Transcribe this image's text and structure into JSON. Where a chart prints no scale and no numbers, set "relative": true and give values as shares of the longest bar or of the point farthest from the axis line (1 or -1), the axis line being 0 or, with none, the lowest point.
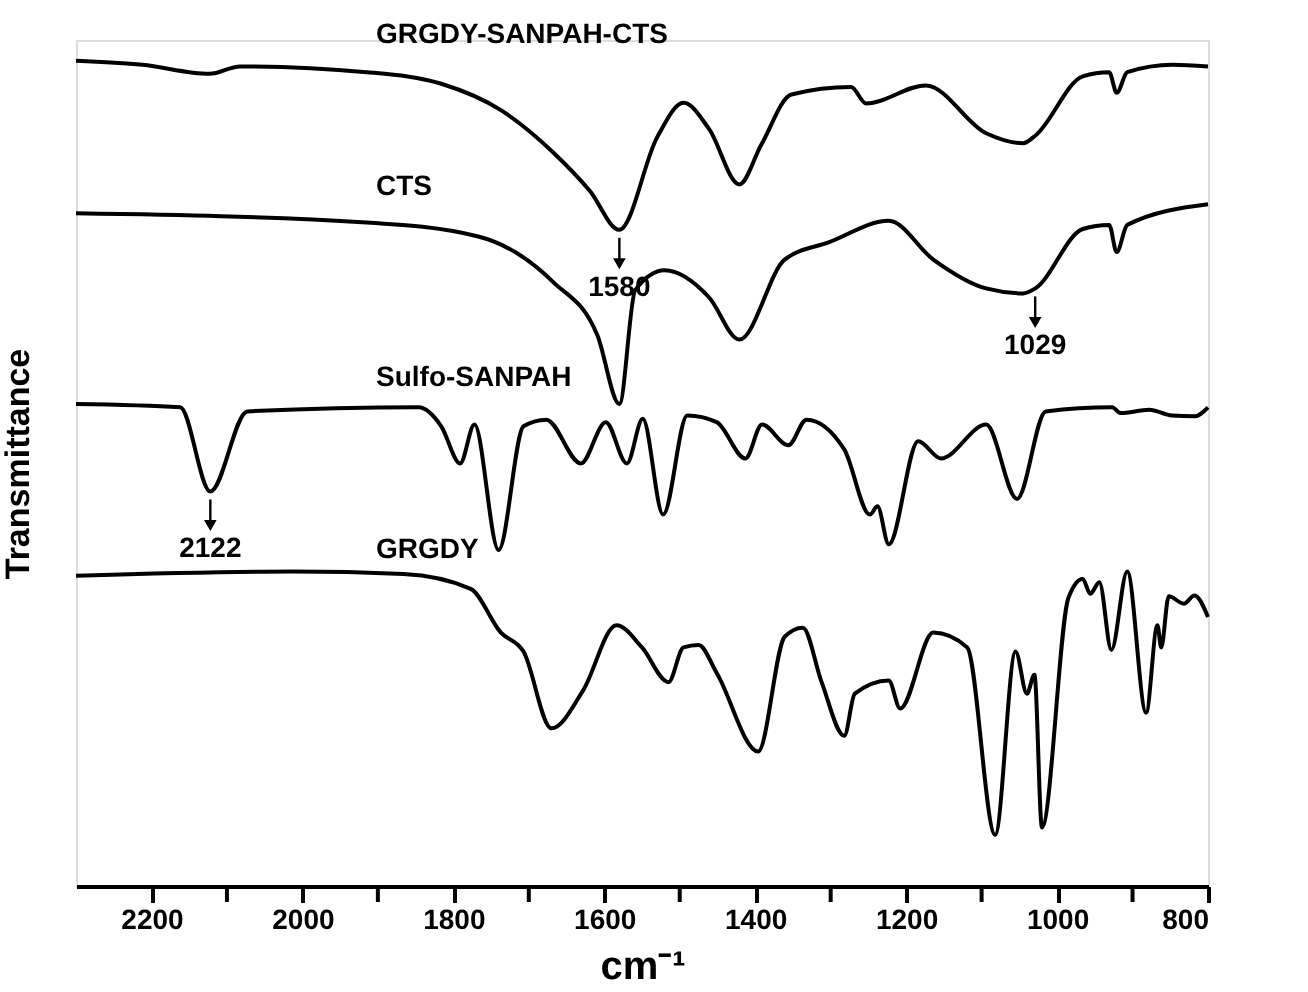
{
  "chart_data": {
    "type": "line",
    "relative": true,
    "xlabel": "cm⁻¹",
    "ylabel": "Transmittance",
    "xlim": [
      2300,
      800
    ],
    "xticks": [
      2200,
      {
        "value": 2100,
        "label": null
      },
      2000,
      {
        "value": 1900,
        "label": null
      },
      1800,
      {
        "value": 1700,
        "label": null
      },
      1600,
      {
        "value": 1500,
        "label": null
      },
      1400,
      {
        "value": 1300,
        "label": null
      },
      1200,
      {
        "value": 1100,
        "label": null
      },
      1000,
      {
        "value": 900,
        "label": null
      },
      800
    ],
    "grid": false,
    "legend": false,
    "tick_labels": "x",
    "marker": "none",
    "line_style": "solid",
    "series": [
      {
        "name": "GRGDY-SANPAH-CTS",
        "color": "#000000",
        "x": [
          2300,
          2212,
          2123,
          2083,
          1915,
          1816,
          1737,
          1668,
          1619,
          1580,
          1530,
          1495,
          1461,
          1421,
          1392,
          1352,
          1273,
          1253,
          1174,
          1094,
          1045,
          1029,
          966,
          931,
          921,
          907,
          847,
          800
        ],
        "values": [
          1.0,
          0.995,
          0.984,
          0.993,
          0.986,
          0.972,
          0.94,
          0.889,
          0.842,
          0.795,
          0.907,
          0.949,
          0.917,
          0.85,
          0.898,
          0.959,
          0.968,
          0.948,
          0.97,
          0.912,
          0.9,
          0.909,
          0.981,
          0.986,
          0.961,
          0.986,
          0.995,
          0.993
        ]
      },
      {
        "name": "CTS",
        "color": "#000000",
        "x": [
          2300,
          1915,
          1767,
          1668,
          1609,
          1580,
          1559,
          1520,
          1461,
          1421,
          1361,
          1302,
          1223,
          1164,
          1094,
          1045,
          1029,
          966,
          931,
          921,
          907,
          800
        ],
        "values": [
          0.815,
          0.804,
          0.787,
          0.732,
          0.667,
          0.584,
          0.722,
          0.746,
          0.713,
          0.662,
          0.759,
          0.78,
          0.806,
          0.759,
          0.724,
          0.718,
          0.724,
          0.796,
          0.801,
          0.768,
          0.801,
          0.826
        ]
      },
      {
        "name": "Sulfo-SANPAH",
        "color": "#000000",
        "x": [
          2300,
          2162,
          2122,
          2073,
          1846,
          1816,
          1791,
          1772,
          1740,
          1707,
          1677,
          1631,
          1598,
          1570,
          1549,
          1522,
          1490,
          1451,
          1413,
          1391,
          1356,
          1332,
          1282,
          1248,
          1238,
          1223,
          1184,
          1154,
          1094,
          1053,
          1015,
          927,
          916,
          878,
          848,
          818,
          800
        ],
        "values": [
          0.584,
          0.58,
          0.478,
          0.575,
          0.58,
          0.557,
          0.512,
          0.559,
          0.407,
          0.557,
          0.565,
          0.512,
          0.562,
          0.512,
          0.566,
          0.45,
          0.57,
          0.562,
          0.518,
          0.559,
          0.534,
          0.565,
          0.529,
          0.45,
          0.46,
          0.414,
          0.539,
          0.518,
          0.559,
          0.469,
          0.575,
          0.58,
          0.573,
          0.577,
          0.57,
          0.569,
          0.58
        ]
      },
      {
        "name": "GRGDY",
        "color": "#000000",
        "x": [
          2300,
          2014,
          1866,
          1777,
          1737,
          1707,
          1670,
          1628,
          1584,
          1550,
          1515,
          1495,
          1475,
          1451,
          1396,
          1361,
          1337,
          1312,
          1282,
          1268,
          1223,
          1208,
          1164,
          1119,
          1082,
          1055,
          1040,
          1030,
          1020,
          985,
          966,
          956,
          944,
          928,
          907,
          882,
          867,
          862,
          852,
          832,
          818,
          800
        ],
        "values": [
          0.376,
          0.381,
          0.378,
          0.36,
          0.307,
          0.284,
          0.191,
          0.237,
          0.316,
          0.289,
          0.247,
          0.289,
          0.292,
          0.258,
          0.163,
          0.302,
          0.313,
          0.247,
          0.182,
          0.233,
          0.249,
          0.215,
          0.307,
          0.289,
          0.062,
          0.284,
          0.233,
          0.256,
          0.071,
          0.349,
          0.372,
          0.354,
          0.368,
          0.286,
          0.381,
          0.21,
          0.316,
          0.289,
          0.351,
          0.342,
          0.352,
          0.326
        ]
      }
    ],
    "annotations": [
      {
        "text": "1580",
        "x": 1580,
        "y": 0.795
      },
      {
        "text": "1029",
        "x": 1029,
        "y": 0.724
      },
      {
        "text": "2122",
        "x": 2122,
        "y": 0.478
      }
    ]
  }
}
